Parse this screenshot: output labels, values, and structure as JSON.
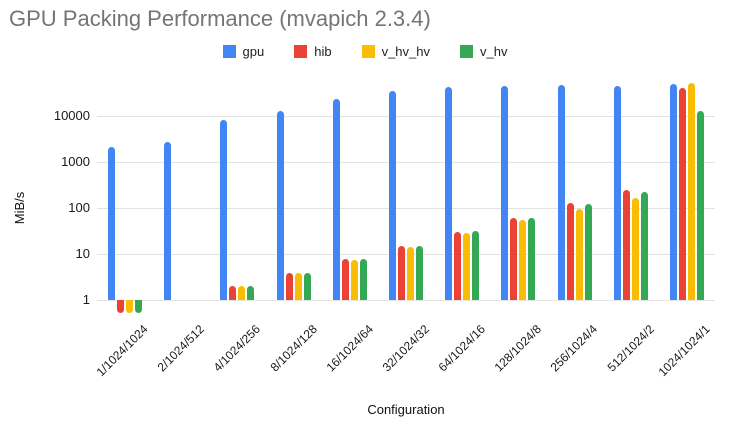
{
  "chart_data": {
    "type": "bar",
    "title": "GPU Packing Performance (mvapich 2.3.4)",
    "xlabel": "Configuration",
    "ylabel": "MiB/s",
    "y_scale": "log",
    "y_ticks": [
      1,
      10,
      100,
      1000,
      10000
    ],
    "ylim": [
      0.5,
      59000
    ],
    "grid": "horizontal-only",
    "legend_position": "top-center",
    "title_color": "#757575",
    "categories": [
      "1/1024/1024",
      "2/1024/512",
      "4/1024/256",
      "8/1024/128",
      "16/1024/64",
      "32/1024/32",
      "64/1024/16",
      "128/1024/8",
      "256/1024/4",
      "512/1024/2",
      "1024/1024/1"
    ],
    "series": [
      {
        "name": "gpu",
        "color": "#4285F4",
        "values": [
          2100,
          2700,
          8000,
          12500,
          23000,
          35000,
          41000,
          43000,
          45000,
          43000,
          49000
        ]
      },
      {
        "name": "hib",
        "color": "#EA4335",
        "values": [
          0.5,
          null,
          2,
          3.9,
          7.8,
          15,
          30,
          60,
          125,
          240,
          40000
        ]
      },
      {
        "name": "v_hv_hv",
        "color": "#FBBC04",
        "values": [
          0.5,
          null,
          2,
          3.8,
          7.2,
          14,
          29,
          55,
          95,
          160,
          51000
        ]
      },
      {
        "name": "v_hv",
        "color": "#34A853",
        "values": [
          0.5,
          null,
          2,
          3.9,
          7.8,
          15,
          31,
          60,
          120,
          225,
          12500
        ]
      }
    ]
  }
}
